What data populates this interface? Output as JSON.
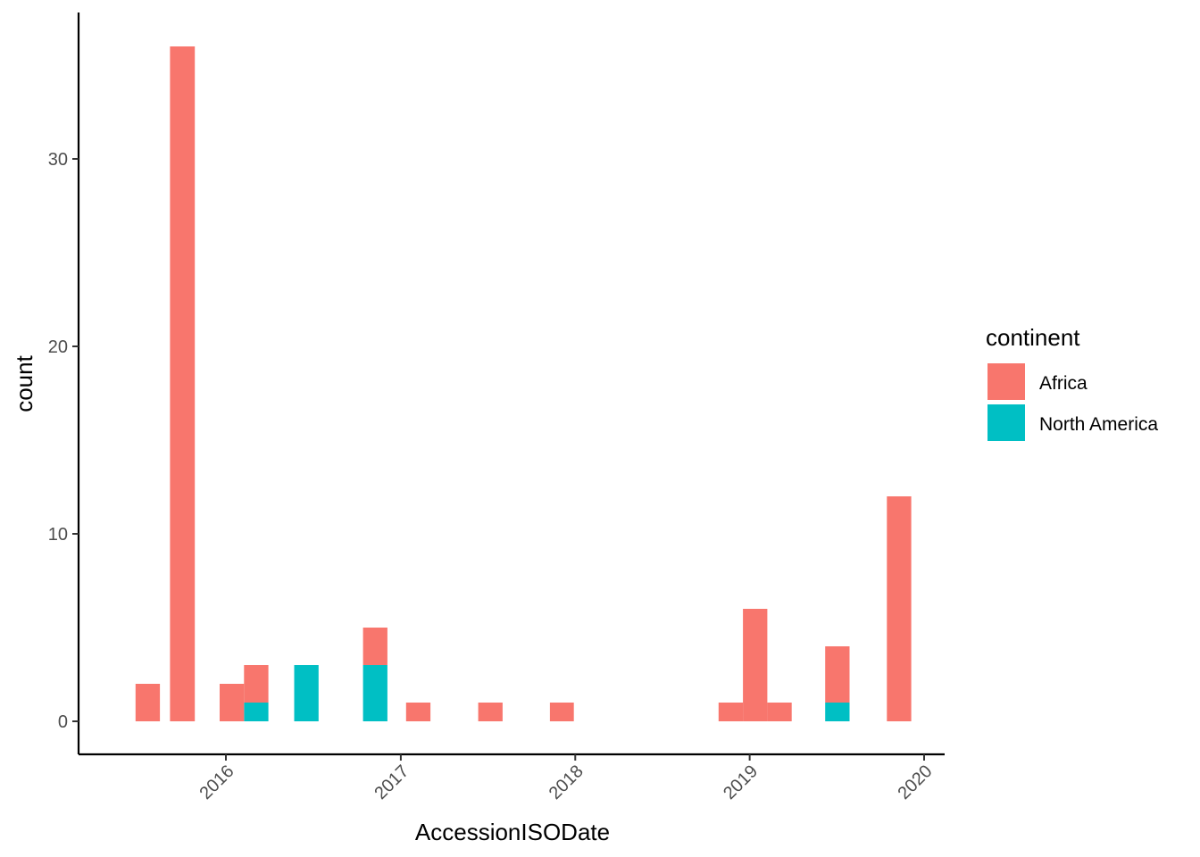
{
  "chart_data": {
    "type": "bar",
    "stacked": true,
    "xlabel": "AccessionISODate",
    "ylabel": "count",
    "x_scale": "date",
    "x_ticks": [
      "2016",
      "2017",
      "2018",
      "2019",
      "2020"
    ],
    "x_tick_dates": [
      "2016-01-01",
      "2017-01-01",
      "2018-01-01",
      "2019-01-01",
      "2020-01-01"
    ],
    "x_tick_angle": -45,
    "y_ticks": [
      0,
      10,
      20,
      30
    ],
    "ylim": [
      0,
      36
    ],
    "xlim": [
      "2015-03-01",
      "2020-03-01"
    ],
    "grid": false,
    "legend": {
      "title": "continent",
      "position": "right",
      "entries": [
        "Africa",
        "North America"
      ]
    },
    "colors": {
      "Africa": "#F8766D",
      "North America": "#00BFC4"
    },
    "series": [
      {
        "name": "Africa",
        "bins": [
          {
            "start": "2015-06-26",
            "end": "2015-08-16",
            "value": 2
          },
          {
            "start": "2015-09-06",
            "end": "2015-10-28",
            "value": 36
          },
          {
            "start": "2015-12-19",
            "end": "2016-02-08",
            "value": 2
          },
          {
            "start": "2016-02-08",
            "end": "2016-03-30",
            "value": 2
          },
          {
            "start": "2016-10-14",
            "end": "2016-12-04",
            "value": 2
          },
          {
            "start": "2017-01-12",
            "end": "2017-03-04",
            "value": 1
          },
          {
            "start": "2017-06-12",
            "end": "2017-08-02",
            "value": 1
          },
          {
            "start": "2017-11-09",
            "end": "2017-12-29",
            "value": 1
          },
          {
            "start": "2018-10-28",
            "end": "2018-12-18",
            "value": 1
          },
          {
            "start": "2018-12-18",
            "end": "2019-02-07",
            "value": 6
          },
          {
            "start": "2019-02-07",
            "end": "2019-03-30",
            "value": 1
          },
          {
            "start": "2019-06-08",
            "end": "2019-07-29",
            "value": 3
          },
          {
            "start": "2019-10-15",
            "end": "2019-12-05",
            "value": 12
          }
        ]
      },
      {
        "name": "North America",
        "bins": [
          {
            "start": "2016-02-08",
            "end": "2016-03-30",
            "value": 1
          },
          {
            "start": "2016-05-23",
            "end": "2016-07-13",
            "value": 3
          },
          {
            "start": "2016-10-14",
            "end": "2016-12-04",
            "value": 3
          },
          {
            "start": "2019-06-08",
            "end": "2019-07-29",
            "value": 1
          }
        ]
      }
    ]
  }
}
